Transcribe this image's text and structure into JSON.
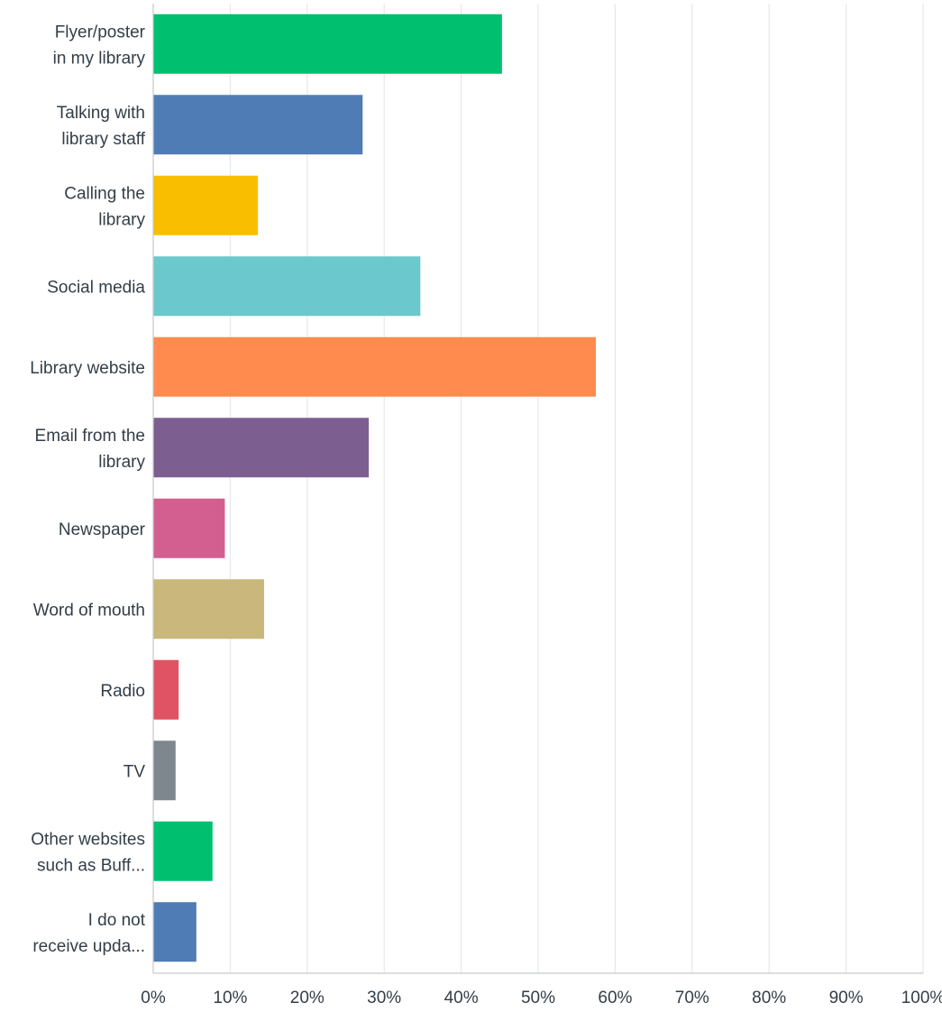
{
  "chart_data": {
    "type": "bar",
    "orientation": "horizontal",
    "categories": [
      [
        "Flyer/poster",
        "in my library"
      ],
      [
        "Talking with",
        "library staff"
      ],
      [
        "Calling the",
        "library"
      ],
      [
        "Social media"
      ],
      [
        "Library website"
      ],
      [
        "Email from the",
        "library"
      ],
      [
        "Newspaper"
      ],
      [
        "Word of mouth"
      ],
      [
        "Radio"
      ],
      [
        "TV"
      ],
      [
        "Other websites",
        "such as Buff..."
      ],
      [
        "I do not",
        "receive upda..."
      ]
    ],
    "values": [
      45.3,
      27.2,
      13.6,
      34.7,
      57.5,
      28.0,
      9.3,
      14.4,
      3.3,
      2.9,
      7.7,
      5.6
    ],
    "colors": [
      "#00bf6f",
      "#507cb6",
      "#f9be00",
      "#6bc8cd",
      "#ff8b4f",
      "#7d5e90",
      "#d25f90",
      "#c9b77b",
      "#e05364",
      "#7e868e",
      "#00bf6f",
      "#507cb6"
    ],
    "xlim": [
      0,
      100
    ],
    "xticks": [
      0,
      10,
      20,
      30,
      40,
      50,
      60,
      70,
      80,
      90,
      100
    ],
    "xtick_labels": [
      "0%",
      "10%",
      "20%",
      "30%",
      "40%",
      "50%",
      "60%",
      "70%",
      "80%",
      "90%",
      "100%"
    ],
    "grid": true,
    "legend": "none",
    "title": "",
    "xlabel": "",
    "ylabel": ""
  }
}
